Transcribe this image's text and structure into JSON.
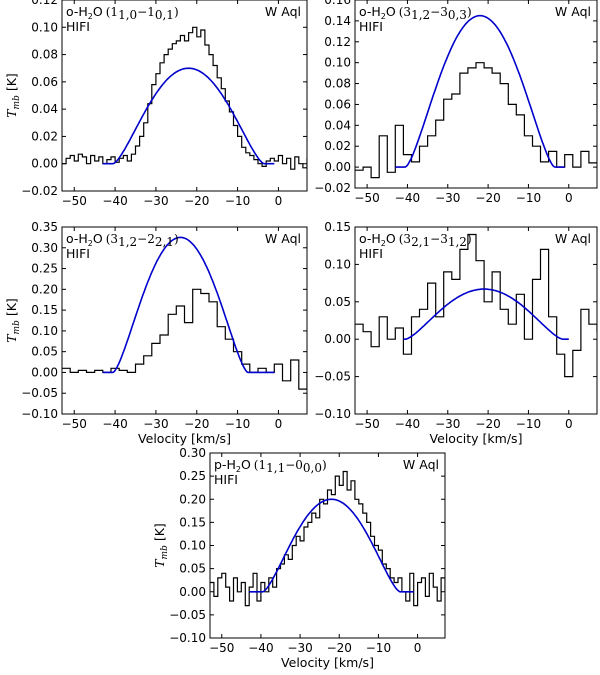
{
  "figure": {
    "source_label": "W Aql",
    "instrument_label": "HIFI",
    "xlabel_prefix": "Velocity [km/s]",
    "ylabel_symbol": "T",
    "ylabel_sub": "mb",
    "ylabel_unit": " [K]"
  },
  "colors": {
    "observed": "#000000",
    "model": "#0000cc",
    "axes": "#000000"
  },
  "chart_data": [
    {
      "type": "line",
      "id": "p1",
      "species": "o-H",
      "species_rest": "O",
      "transition": "(1",
      "trans_up": "1,0",
      "trans_sep": "−1",
      "trans_low": "0,1",
      "trans_close": ")",
      "source": "W Aql",
      "instrument": "HIFI",
      "xlim": [
        -53,
        7
      ],
      "ylim": [
        -0.02,
        0.12
      ],
      "xticks": [
        -50,
        -40,
        -30,
        -20,
        -10,
        0
      ],
      "xtick_labels": [
        "−50",
        "−40",
        "−30",
        "−20",
        "−10",
        "0"
      ],
      "yticks": [
        -0.02,
        0.0,
        0.02,
        0.04,
        0.06,
        0.08,
        0.1,
        0.12
      ],
      "ytick_labels": [
        "−0.02",
        "0.00",
        "0.02",
        "0.04",
        "0.06",
        "0.08",
        "0.10",
        "0.12"
      ],
      "show_xlabel": false,
      "show_ylabel": true,
      "series": [
        {
          "name": "observed",
          "style": "step",
          "x": [
            -53,
            -52,
            -51,
            -50,
            -49,
            -48,
            -47,
            -46,
            -45,
            -44,
            -43,
            -42,
            -41,
            -40,
            -39,
            -38,
            -37,
            -36,
            -35,
            -34,
            -33,
            -32,
            -31,
            -30,
            -29,
            -28,
            -27,
            -26,
            -25,
            -24,
            -23,
            -22,
            -21,
            -20,
            -19,
            -18,
            -17,
            -16,
            -15,
            -14,
            -13,
            -12,
            -11,
            -10,
            -9,
            -8,
            -7,
            -6,
            -5,
            -4,
            -3,
            -2,
            -1,
            0,
            1,
            2,
            3,
            4,
            5,
            6,
            7
          ],
          "y": [
            0.0,
            0.004,
            0.006,
            0.002,
            0.007,
            0.005,
            0.0,
            0.006,
            0.002,
            0.005,
            0.0,
            0.003,
            0.005,
            0.001,
            0.004,
            0.006,
            0.002,
            0.007,
            0.013,
            0.02,
            0.03,
            0.044,
            0.058,
            0.066,
            0.074,
            0.08,
            0.084,
            0.088,
            0.09,
            0.094,
            0.09,
            0.096,
            0.1,
            0.093,
            0.098,
            0.087,
            0.08,
            0.072,
            0.063,
            0.055,
            0.046,
            0.038,
            0.028,
            0.02,
            0.012,
            0.008,
            0.006,
            0.003,
            0.0,
            -0.002,
            0.002,
            0.004,
            0.002,
            0.006,
            0.0,
            0.004,
            -0.004,
            0.005,
            0.0,
            -0.003,
            0.004
          ]
        },
        {
          "name": "model",
          "style": "line",
          "peak": 0.07,
          "center": -22,
          "halfwidth": 18.5,
          "x_start": -43,
          "x_end": -1
        }
      ]
    },
    {
      "type": "line",
      "id": "p2",
      "species": "o-H",
      "species_rest": "O",
      "transition": "(3",
      "trans_up": "1,2",
      "trans_sep": "−3",
      "trans_low": "0,3",
      "trans_close": ")",
      "source": "W Aql",
      "instrument": "HIFI",
      "xlim": [
        -53,
        7
      ],
      "ylim": [
        -0.02,
        0.16
      ],
      "xticks": [
        -50,
        -40,
        -30,
        -20,
        -10,
        0
      ],
      "xtick_labels": [
        "−50",
        "−40",
        "−30",
        "−20",
        "−10",
        "0"
      ],
      "yticks": [
        -0.02,
        0.0,
        0.02,
        0.04,
        0.06,
        0.08,
        0.1,
        0.12,
        0.14,
        0.16
      ],
      "ytick_labels": [
        "−0.02",
        "0.00",
        "0.02",
        "0.04",
        "0.06",
        "0.08",
        "0.10",
        "0.12",
        "0.14",
        "0.16"
      ],
      "show_xlabel": false,
      "show_ylabel": false,
      "series": [
        {
          "name": "observed",
          "style": "step",
          "x": [
            -53,
            -51,
            -49,
            -47,
            -45,
            -43,
            -41,
            -39,
            -37,
            -35,
            -33,
            -31,
            -29,
            -27,
            -25,
            -23,
            -21,
            -19,
            -17,
            -15,
            -13,
            -11,
            -9,
            -7,
            -5,
            -3,
            -1,
            1,
            3,
            5,
            7
          ],
          "y": [
            -0.003,
            0.0,
            -0.01,
            0.03,
            -0.005,
            0.04,
            0.012,
            0.005,
            0.02,
            0.03,
            0.045,
            0.065,
            0.07,
            0.09,
            0.095,
            0.1,
            0.095,
            0.09,
            0.08,
            0.06,
            0.05,
            0.03,
            0.02,
            0.005,
            0.015,
            0.0,
            0.012,
            0.0,
            0.015,
            0.004,
            0.005
          ]
        },
        {
          "name": "model",
          "style": "line",
          "peak": 0.145,
          "center": -22,
          "halfwidth": 18.5,
          "x_start": -43,
          "x_end": -1
        }
      ]
    },
    {
      "type": "line",
      "id": "p3",
      "species": "o-H",
      "species_rest": "O",
      "transition": "(3",
      "trans_up": "1,2",
      "trans_sep": "−2",
      "trans_low": "2,1",
      "trans_close": ")",
      "source": "W Aql",
      "instrument": "HIFI",
      "xlim": [
        -53,
        7
      ],
      "ylim": [
        -0.1,
        0.35
      ],
      "xticks": [
        -50,
        -40,
        -30,
        -20,
        -10,
        0
      ],
      "xtick_labels": [
        "−50",
        "−40",
        "−30",
        "−20",
        "−10",
        "0"
      ],
      "yticks": [
        -0.1,
        -0.05,
        0.0,
        0.05,
        0.1,
        0.15,
        0.2,
        0.25,
        0.3,
        0.35
      ],
      "ytick_labels": [
        "−0.10",
        "−0.05",
        "0.00",
        "0.05",
        "0.10",
        "0.15",
        "0.20",
        "0.25",
        "0.30",
        "0.35"
      ],
      "show_xlabel": true,
      "show_ylabel": true,
      "series": [
        {
          "name": "observed",
          "style": "step",
          "x": [
            -53,
            -51,
            -49,
            -47,
            -45,
            -43,
            -41,
            -39,
            -37,
            -35,
            -33,
            -31,
            -29,
            -27,
            -25,
            -23,
            -21,
            -19,
            -17,
            -15,
            -13,
            -11,
            -9,
            -7,
            -5,
            -3,
            -1,
            1,
            3,
            5,
            7
          ],
          "y": [
            0.01,
            0.0,
            0.005,
            0.0,
            0.005,
            0.0,
            0.01,
            0.005,
            0.0,
            0.02,
            0.04,
            0.07,
            0.09,
            0.14,
            0.16,
            0.12,
            0.2,
            0.19,
            0.17,
            0.11,
            0.08,
            0.05,
            0.02,
            0.0,
            0.01,
            0.0,
            0.02,
            -0.02,
            0.03,
            -0.04,
            0.0
          ]
        },
        {
          "name": "model",
          "style": "line",
          "peak": 0.325,
          "center": -24,
          "halfwidth": 16.5,
          "x_start": -43,
          "x_end": -1
        }
      ]
    },
    {
      "type": "line",
      "id": "p4",
      "species": "o-H",
      "species_rest": "O",
      "transition": "(3",
      "trans_up": "2,1",
      "trans_sep": "−3",
      "trans_low": "1,2",
      "trans_close": ")",
      "source": "W Aql",
      "instrument": "HIFI",
      "xlim": [
        -53,
        7
      ],
      "ylim": [
        -0.1,
        0.15
      ],
      "xticks": [
        -50,
        -40,
        -30,
        -20,
        -10,
        0
      ],
      "xtick_labels": [
        "−50",
        "−40",
        "−30",
        "−20",
        "−10",
        "0"
      ],
      "yticks": [
        -0.1,
        -0.05,
        0.0,
        0.05,
        0.1,
        0.15
      ],
      "ytick_labels": [
        "−0.10",
        "−0.05",
        "0.00",
        "0.05",
        "0.10",
        "0.15"
      ],
      "show_xlabel": true,
      "show_ylabel": false,
      "series": [
        {
          "name": "observed",
          "style": "step",
          "x": [
            -53,
            -51,
            -49,
            -47,
            -45,
            -43,
            -41,
            -39,
            -37,
            -35,
            -33,
            -31,
            -29,
            -27,
            -25,
            -23,
            -21,
            -19,
            -17,
            -15,
            -13,
            -11,
            -9,
            -7,
            -5,
            -3,
            -1,
            1,
            3,
            5,
            7
          ],
          "y": [
            0.02,
            0.01,
            -0.01,
            0.03,
            0.0,
            0.015,
            -0.02,
            0.03,
            0.04,
            0.075,
            0.03,
            0.09,
            0.08,
            0.12,
            0.14,
            0.105,
            0.05,
            0.09,
            0.04,
            0.02,
            0.06,
            0.0,
            0.08,
            0.12,
            0.03,
            -0.02,
            -0.05,
            -0.015,
            0.04,
            0.02,
            0.01
          ]
        },
        {
          "name": "model",
          "style": "line",
          "peak": 0.067,
          "center": -21,
          "halfwidth": 19.5,
          "x_start": -41,
          "x_end": 0
        }
      ]
    },
    {
      "type": "line",
      "id": "p5",
      "species": "p-H",
      "species_rest": "O",
      "transition": "(1",
      "trans_up": "1,1",
      "trans_sep": "−0",
      "trans_low": "0,0",
      "trans_close": ")",
      "source": "W Aql",
      "instrument": "HIFI",
      "xlim": [
        -53,
        7
      ],
      "ylim": [
        -0.1,
        0.3
      ],
      "xticks": [
        -50,
        -40,
        -30,
        -20,
        -10,
        0
      ],
      "xtick_labels": [
        "−50",
        "−40",
        "−30",
        "−20",
        "−10",
        "0"
      ],
      "yticks": [
        -0.1,
        -0.05,
        0.0,
        0.05,
        0.1,
        0.15,
        0.2,
        0.25,
        0.3
      ],
      "ytick_labels": [
        "−0.10",
        "−0.05",
        "0.00",
        "0.05",
        "0.10",
        "0.15",
        "0.20",
        "0.25",
        "0.30"
      ],
      "show_xlabel": true,
      "show_ylabel": true,
      "series": [
        {
          "name": "observed",
          "style": "step",
          "x": [
            -53,
            -52,
            -51,
            -50,
            -49,
            -48,
            -47,
            -46,
            -45,
            -44,
            -43,
            -42,
            -41,
            -40,
            -39,
            -38,
            -37,
            -36,
            -35,
            -34,
            -33,
            -32,
            -31,
            -30,
            -29,
            -28,
            -27,
            -26,
            -25,
            -24,
            -23,
            -22,
            -21,
            -20,
            -19,
            -18,
            -17,
            -16,
            -15,
            -14,
            -13,
            -12,
            -11,
            -10,
            -9,
            -8,
            -7,
            -6,
            -5,
            -4,
            -3,
            -2,
            -1,
            0,
            1,
            2,
            3,
            4,
            5,
            6,
            7
          ],
          "y": [
            0.02,
            -0.01,
            0.03,
            0.04,
            0.01,
            -0.02,
            0.03,
            0.0,
            0.02,
            -0.03,
            0.01,
            0.04,
            -0.02,
            0.02,
            0.0,
            0.03,
            0.01,
            0.05,
            0.06,
            0.08,
            0.07,
            0.1,
            0.12,
            0.11,
            0.14,
            0.15,
            0.17,
            0.16,
            0.2,
            0.19,
            0.22,
            0.21,
            0.25,
            0.23,
            0.26,
            0.22,
            0.24,
            0.2,
            0.19,
            0.17,
            0.15,
            0.12,
            0.1,
            0.09,
            0.06,
            0.05,
            0.03,
            0.02,
            0.03,
            0.0,
            -0.02,
            0.04,
            -0.03,
            0.02,
            0.03,
            -0.01,
            0.04,
            0.01,
            -0.02,
            0.03,
            0.0
          ]
        },
        {
          "name": "model",
          "style": "line",
          "peak": 0.2,
          "center": -22,
          "halfwidth": 17.5,
          "x_start": -43,
          "x_end": -1
        }
      ]
    }
  ]
}
